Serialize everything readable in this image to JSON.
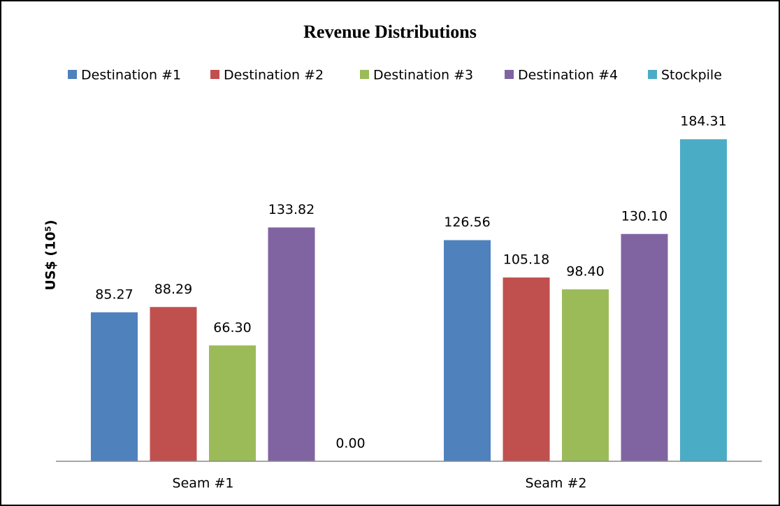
{
  "chart_data": {
    "type": "bar",
    "title": "Revenue Distributions",
    "y_label": "US$ (10⁵)",
    "categories": [
      "Seam #1",
      "Seam #2"
    ],
    "series": [
      {
        "name": "Destination #1",
        "color": "#4f81bd",
        "values": [
          85.27,
          126.56
        ],
        "value_labels": [
          "85.27",
          "126.56"
        ]
      },
      {
        "name": "Destination #2",
        "color": "#c0504d",
        "values": [
          88.29,
          105.18
        ],
        "value_labels": [
          "88.29",
          "105.18"
        ]
      },
      {
        "name": "Destination #3",
        "color": "#9bbb59",
        "values": [
          66.3,
          98.4
        ],
        "value_labels": [
          "66.30",
          "98.40"
        ]
      },
      {
        "name": "Destination #4",
        "color": "#8064a2",
        "values": [
          133.82,
          130.1
        ],
        "value_labels": [
          "133.82",
          "130.10"
        ]
      },
      {
        "name": "Stockpile",
        "color": "#4bacc6",
        "values": [
          0,
          184.31
        ],
        "value_labels": [
          "0.00",
          "184.31"
        ]
      }
    ],
    "ylim": [
      0,
      200
    ],
    "legend": "top"
  }
}
